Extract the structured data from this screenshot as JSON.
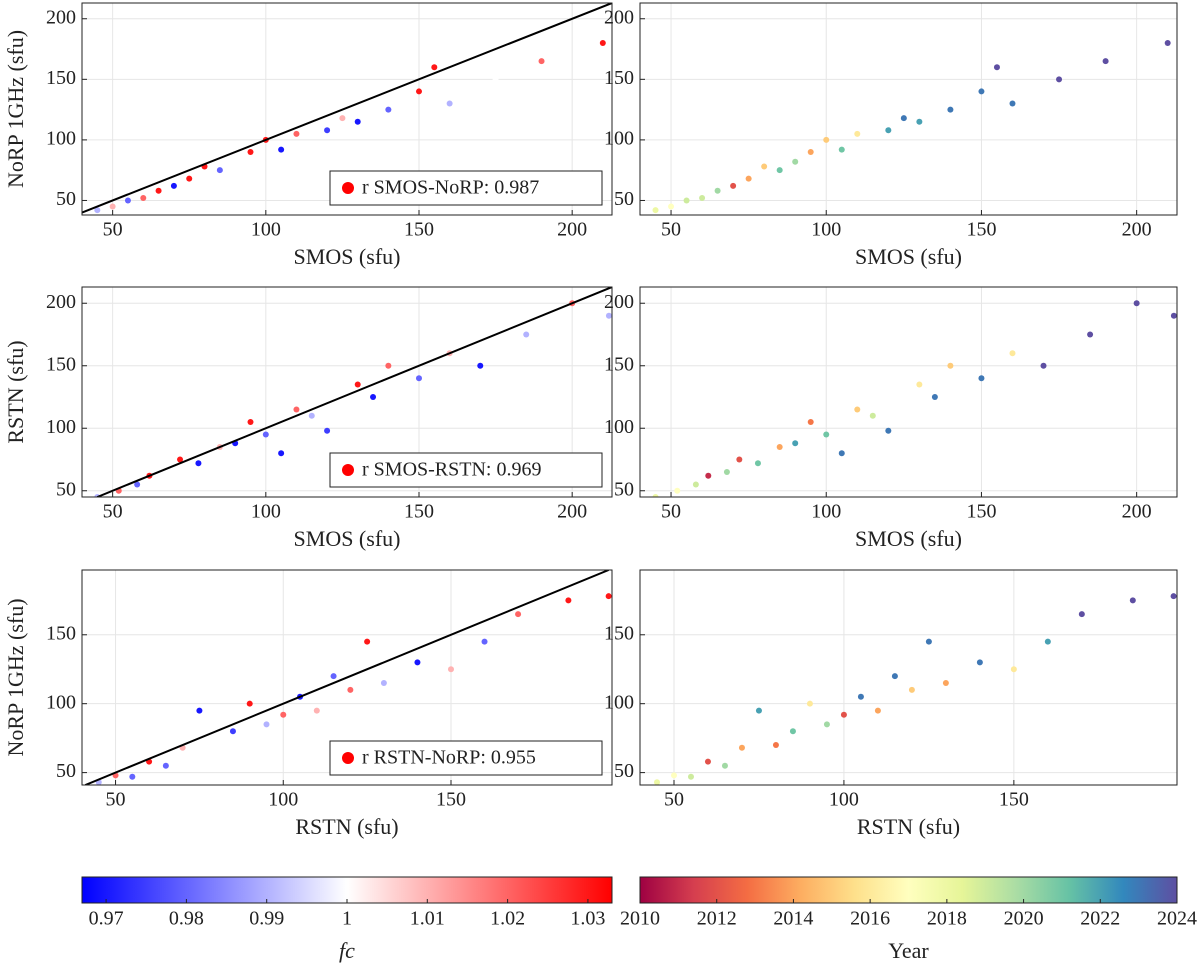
{
  "chart_data": [
    {
      "type": "scatter",
      "xlabel": "SMOS (sfu)",
      "ylabel": "NoRP 1GHz (sfu)",
      "xlim": [
        40,
        213
      ],
      "ylim": [
        38,
        213
      ],
      "xticks": [
        50,
        100,
        150,
        200
      ],
      "yticks": [
        50,
        100,
        150,
        200
      ],
      "grid": true,
      "identity_line": true,
      "legend": "lower right",
      "colormap": [
        "#0000ff",
        "#ffffff",
        "#ff0000"
      ],
      "clim": [
        0.967,
        1.033
      ],
      "series": [
        {
          "name": "r SMOS-NoRP: 0.987",
          "color": "#ff0000",
          "x": [
            45,
            50,
            55,
            60,
            65,
            70,
            75,
            80,
            85,
            90,
            95,
            100,
            105,
            110,
            120,
            125,
            130,
            140,
            150,
            155,
            160,
            175,
            190,
            210
          ],
          "values": [
            42,
            45,
            50,
            52,
            58,
            62,
            68,
            78,
            75,
            82,
            90,
            100,
            92,
            105,
            108,
            118,
            115,
            125,
            140,
            160,
            130,
            150,
            165,
            180
          ],
          "c": [
            0.99,
            1.01,
            0.98,
            1.02,
            1.03,
            0.97,
            1.03,
            1.03,
            0.98,
            1.0,
            1.03,
            1.03,
            0.97,
            1.02,
            0.975,
            1.01,
            0.97,
            0.98,
            1.03,
            1.03,
            0.99,
            1.0,
            1.02,
            1.03
          ]
        }
      ]
    },
    {
      "type": "scatter",
      "xlabel": "SMOS (sfu)",
      "xlim": [
        40,
        213
      ],
      "ylim": [
        38,
        213
      ],
      "xticks": [
        50,
        100,
        150,
        200
      ],
      "yticks": [
        50,
        100,
        150,
        200
      ],
      "grid": true,
      "identity_line": false,
      "colormap": [
        "#9e0142",
        "#d53e4f",
        "#f46d43",
        "#fdae61",
        "#fee08b",
        "#ffffbf",
        "#e6f598",
        "#abdda4",
        "#66c2a5",
        "#3288bd",
        "#5e4fa2"
      ],
      "clim": [
        2010,
        2024
      ],
      "series": [
        {
          "x": [
            45,
            50,
            55,
            60,
            65,
            70,
            75,
            80,
            85,
            90,
            95,
            100,
            105,
            110,
            120,
            125,
            130,
            140,
            150,
            155,
            160,
            175,
            190,
            210
          ],
          "values": [
            42,
            45,
            50,
            52,
            58,
            62,
            68,
            78,
            75,
            82,
            90,
            100,
            92,
            105,
            108,
            118,
            115,
            125,
            140,
            160,
            130,
            150,
            165,
            180
          ],
          "c": [
            2018,
            2017,
            2019,
            2019,
            2020,
            2012,
            2014,
            2015,
            2021,
            2020,
            2014,
            2015,
            2021,
            2016,
            2022,
            2023,
            2022,
            2023,
            2023,
            2024,
            2023,
            2024,
            2024,
            2024
          ]
        }
      ]
    },
    {
      "type": "scatter",
      "xlabel": "SMOS (sfu)",
      "ylabel": "RSTN (sfu)",
      "xlim": [
        40,
        213
      ],
      "ylim": [
        45,
        213
      ],
      "xticks": [
        50,
        100,
        150,
        200
      ],
      "yticks": [
        50,
        100,
        150,
        200
      ],
      "grid": true,
      "identity_line": true,
      "legend": "lower right",
      "colormap": [
        "#0000ff",
        "#ffffff",
        "#ff0000"
      ],
      "clim": [
        0.967,
        1.033
      ],
      "series": [
        {
          "name": "r SMOS-RSTN: 0.969",
          "color": "#ff0000",
          "x": [
            45,
            52,
            58,
            62,
            68,
            72,
            78,
            85,
            90,
            95,
            100,
            105,
            110,
            115,
            120,
            130,
            135,
            140,
            150,
            160,
            170,
            185,
            200,
            212
          ],
          "values": [
            45,
            50,
            55,
            62,
            65,
            75,
            72,
            85,
            88,
            105,
            95,
            80,
            115,
            110,
            98,
            135,
            125,
            150,
            140,
            160,
            150,
            175,
            200,
            190
          ],
          "c": [
            0.99,
            1.02,
            0.98,
            1.03,
            1.0,
            1.03,
            0.97,
            1.01,
            0.97,
            1.03,
            0.98,
            0.97,
            1.02,
            0.99,
            0.975,
            1.03,
            0.97,
            1.02,
            0.98,
            1.01,
            0.97,
            0.99,
            1.02,
            0.99
          ]
        }
      ]
    },
    {
      "type": "scatter",
      "xlabel": "SMOS (sfu)",
      "xlim": [
        40,
        213
      ],
      "ylim": [
        45,
        213
      ],
      "xticks": [
        50,
        100,
        150,
        200
      ],
      "yticks": [
        50,
        100,
        150,
        200
      ],
      "grid": true,
      "identity_line": false,
      "colormap": [
        "#9e0142",
        "#d53e4f",
        "#f46d43",
        "#fdae61",
        "#fee08b",
        "#ffffbf",
        "#e6f598",
        "#abdda4",
        "#66c2a5",
        "#3288bd",
        "#5e4fa2"
      ],
      "clim": [
        2010,
        2024
      ],
      "series": [
        {
          "x": [
            45,
            52,
            58,
            62,
            68,
            72,
            78,
            85,
            90,
            95,
            100,
            105,
            110,
            115,
            120,
            130,
            135,
            140,
            150,
            160,
            170,
            185,
            200,
            212
          ],
          "values": [
            45,
            50,
            55,
            62,
            65,
            75,
            72,
            85,
            88,
            105,
            95,
            80,
            115,
            110,
            98,
            135,
            125,
            150,
            140,
            160,
            150,
            175,
            200,
            190
          ],
          "c": [
            2018,
            2017,
            2019,
            2011,
            2020,
            2012,
            2021,
            2014,
            2022,
            2013,
            2021,
            2023,
            2015,
            2019,
            2023,
            2016,
            2023,
            2015,
            2023,
            2016,
            2024,
            2024,
            2024,
            2024
          ]
        }
      ]
    },
    {
      "type": "scatter",
      "xlabel": "RSTN (sfu)",
      "ylabel": "NoRP 1GHz (sfu)",
      "xlim": [
        40,
        198
      ],
      "ylim": [
        41,
        197
      ],
      "xticks": [
        50,
        100,
        150
      ],
      "yticks": [
        50,
        100,
        150
      ],
      "grid": true,
      "identity_line": true,
      "legend": "lower right",
      "colormap": [
        "#0000ff",
        "#ffffff",
        "#ff0000"
      ],
      "clim": [
        0.967,
        1.033
      ],
      "series": [
        {
          "name": "r RSTN-NoRP: 0.955",
          "color": "#ff0000",
          "x": [
            45,
            50,
            55,
            60,
            65,
            70,
            75,
            80,
            85,
            90,
            95,
            100,
            105,
            110,
            115,
            120,
            125,
            130,
            140,
            150,
            160,
            170,
            185,
            197
          ],
          "values": [
            43,
            48,
            47,
            58,
            55,
            68,
            95,
            70,
            80,
            100,
            85,
            92,
            105,
            95,
            120,
            110,
            145,
            115,
            130,
            125,
            145,
            165,
            175,
            178
          ],
          "c": [
            0.99,
            1.02,
            0.98,
            1.03,
            0.98,
            1.01,
            0.97,
            1.0,
            0.975,
            1.03,
            0.99,
            1.02,
            0.97,
            1.01,
            0.98,
            1.02,
            1.03,
            0.99,
            0.97,
            1.01,
            0.98,
            1.02,
            1.03,
            1.03
          ]
        }
      ]
    },
    {
      "type": "scatter",
      "xlabel": "RSTN (sfu)",
      "xlim": [
        40,
        198
      ],
      "ylim": [
        41,
        197
      ],
      "xticks": [
        50,
        100,
        150
      ],
      "yticks": [
        50,
        100,
        150
      ],
      "grid": true,
      "identity_line": false,
      "colormap": [
        "#9e0142",
        "#d53e4f",
        "#f46d43",
        "#fdae61",
        "#fee08b",
        "#ffffbf",
        "#e6f598",
        "#abdda4",
        "#66c2a5",
        "#3288bd",
        "#5e4fa2"
      ],
      "clim": [
        2010,
        2024
      ],
      "series": [
        {
          "x": [
            45,
            50,
            55,
            60,
            65,
            70,
            75,
            80,
            85,
            90,
            95,
            100,
            105,
            110,
            115,
            120,
            125,
            130,
            140,
            150,
            160,
            170,
            185,
            197
          ],
          "values": [
            43,
            48,
            47,
            58,
            55,
            68,
            95,
            70,
            80,
            100,
            85,
            92,
            105,
            95,
            120,
            110,
            145,
            115,
            130,
            125,
            145,
            165,
            175,
            178
          ],
          "c": [
            2018,
            2017,
            2019,
            2012,
            2020,
            2014,
            2022,
            2013,
            2021,
            2016,
            2020,
            2012,
            2023,
            2014,
            2023,
            2015,
            2023,
            2014,
            2023,
            2016,
            2022,
            2024,
            2024,
            2024
          ]
        }
      ]
    },
    {
      "type": "colorbar",
      "xlabel": "fc",
      "xlim": [
        0.967,
        1.033
      ],
      "xticks": [
        0.97,
        0.98,
        0.99,
        1,
        1.01,
        1.02,
        1.03
      ],
      "colormap": [
        "#0000ff",
        "#ffffff",
        "#ff0000"
      ]
    },
    {
      "type": "colorbar",
      "xlabel": "Year",
      "xlim": [
        2010,
        2024
      ],
      "xticks": [
        2010,
        2012,
        2014,
        2016,
        2018,
        2020,
        2022,
        2024
      ],
      "colormap": [
        "#9e0142",
        "#d53e4f",
        "#f46d43",
        "#fdae61",
        "#fee08b",
        "#ffffbf",
        "#e6f598",
        "#abdda4",
        "#66c2a5",
        "#3288bd",
        "#5e4fa2"
      ]
    }
  ]
}
